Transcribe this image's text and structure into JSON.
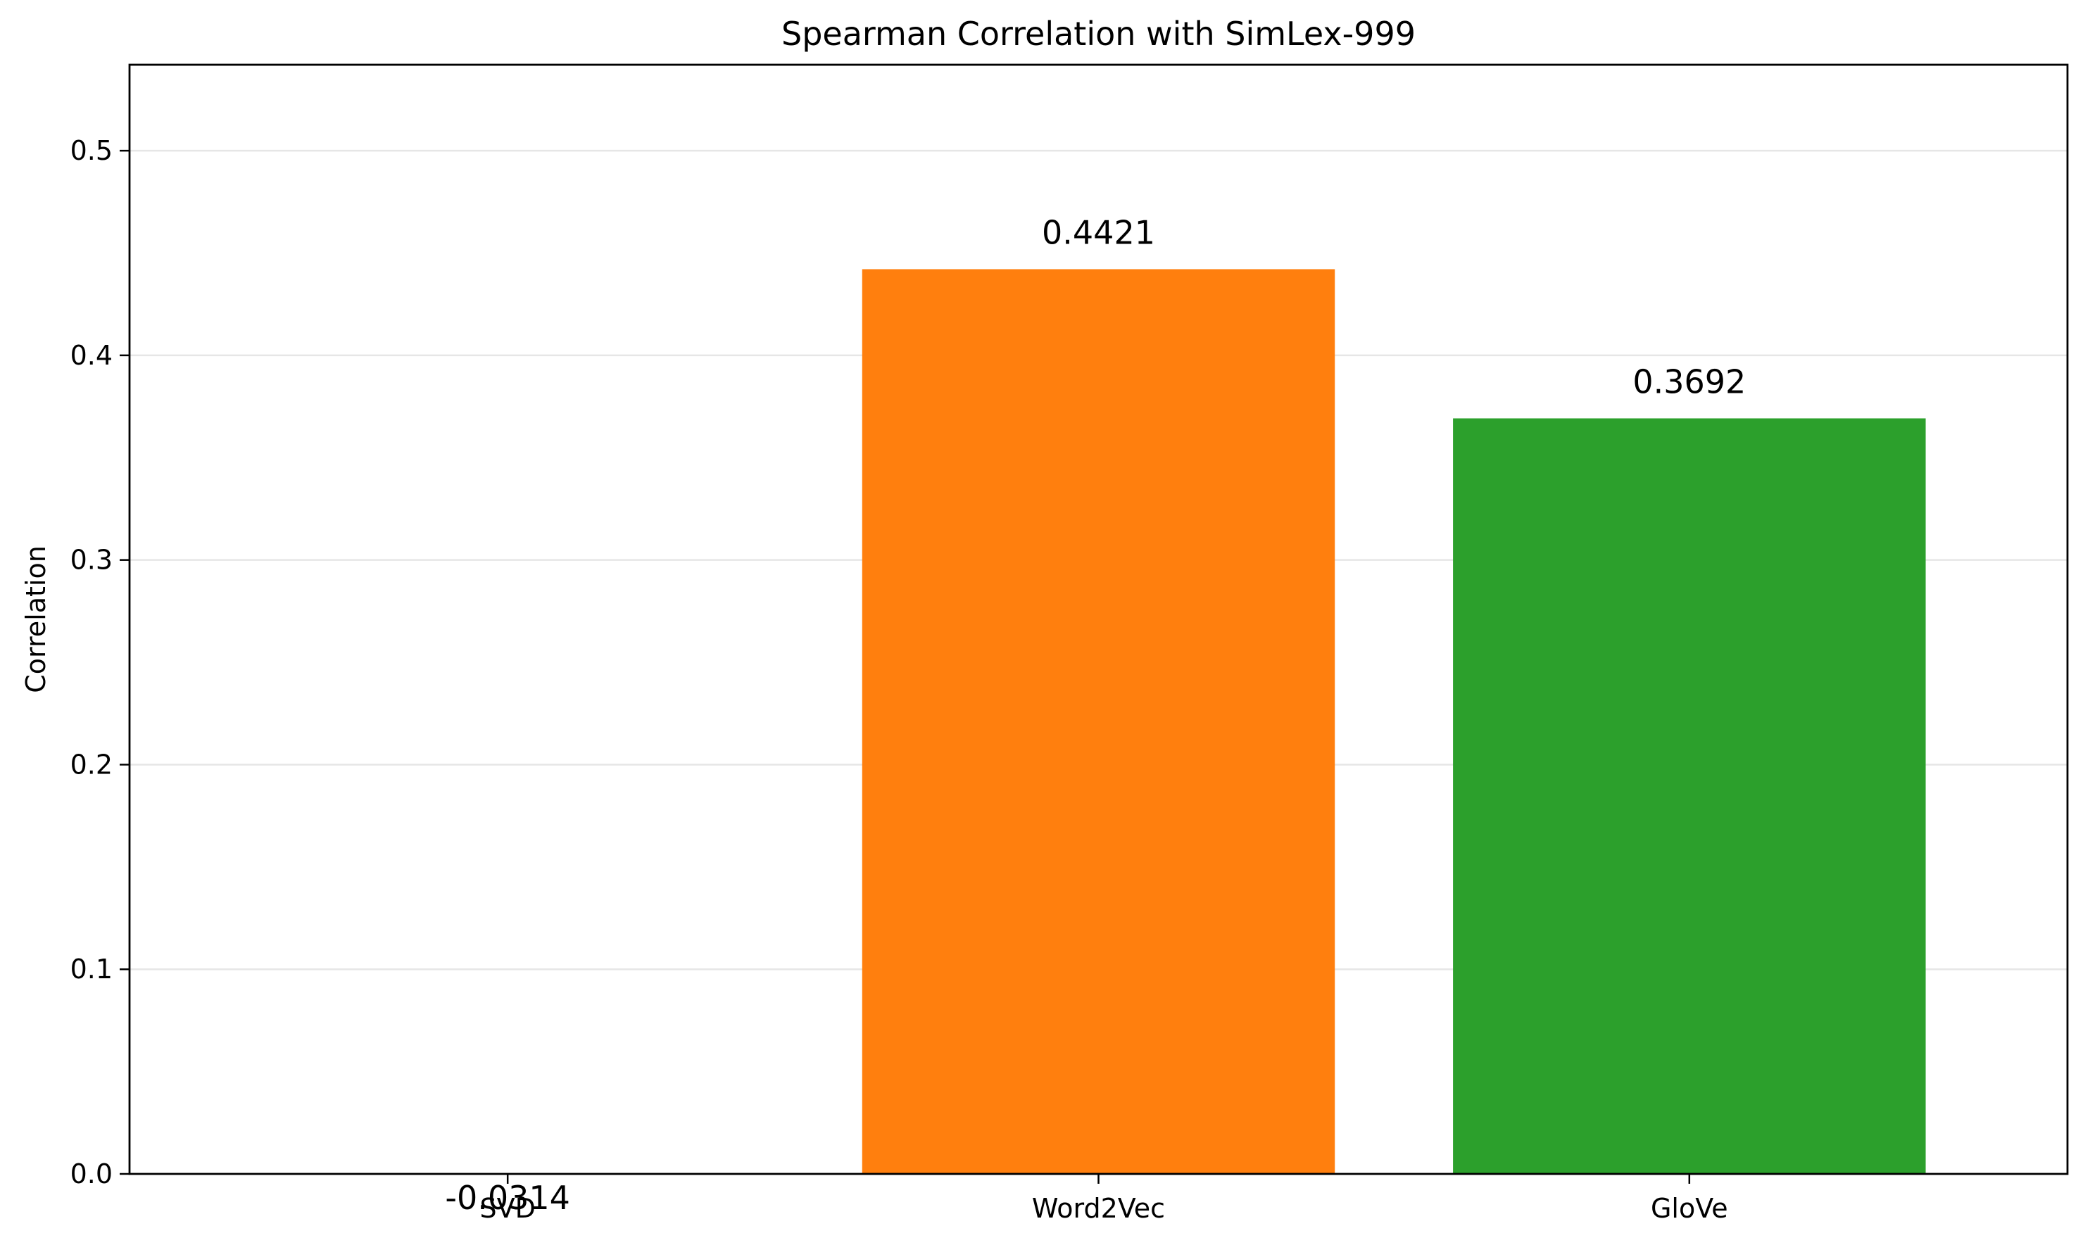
{
  "chart_data": {
    "type": "bar",
    "title": "Spearman Correlation with SimLex-999",
    "xlabel": "",
    "ylabel": "Correlation",
    "categories": [
      "SVD",
      "Word2Vec",
      "GloVe"
    ],
    "values": [
      -0.0314,
      0.4421,
      0.3692
    ],
    "data_labels": [
      "-0.0314",
      "0.4421",
      "0.3692"
    ],
    "colors": [
      "#1f77b4",
      "#ff7f0e",
      "#2ca02c"
    ],
    "ylim": [
      0.0,
      0.542
    ],
    "yticks": [
      0.0,
      0.1,
      0.2,
      0.3,
      0.4,
      0.5
    ],
    "ytick_labels": [
      "0.0",
      "0.1",
      "0.2",
      "0.3",
      "0.4",
      "0.5"
    ],
    "grid": "y"
  }
}
